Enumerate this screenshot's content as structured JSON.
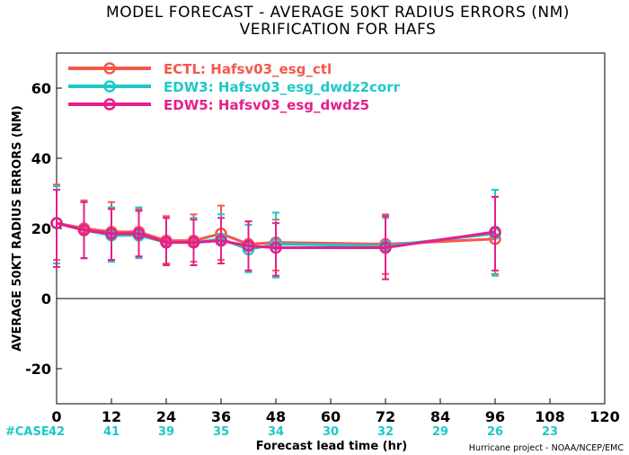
{
  "chart_data": {
    "type": "line",
    "title": "MODEL FORECAST - AVERAGE 50KT RADIUS ERRORS (NM)",
    "subtitle": "VERIFICATION FOR HAFS",
    "xlabel": "Forecast lead time (hr)",
    "ylabel": "AVERAGE 50KT RADIUS ERRORS (NM)",
    "xlim": [
      0,
      120
    ],
    "ylim": [
      -30,
      70
    ],
    "x_ticks": [
      0,
      12,
      24,
      36,
      48,
      60,
      72,
      84,
      96,
      108,
      120
    ],
    "x_tick_labels": [
      "0",
      "12",
      "24",
      "36",
      "48",
      "60",
      "72",
      "84",
      "96",
      "108",
      "120"
    ],
    "y_ticks": [
      -20,
      0,
      20,
      40,
      60
    ],
    "y_tick_labels": [
      "-20",
      "0",
      "20",
      "40",
      "60"
    ],
    "zero_line": true,
    "legend_position": "top-left",
    "credit": "Hurricane project - NOAA/NCEP/EMC",
    "case_label": "#CASE",
    "case_color": "#1ec8c8",
    "cases": [
      {
        "x": 0,
        "count": "42"
      },
      {
        "x": 12,
        "count": "41"
      },
      {
        "x": 24,
        "count": "39"
      },
      {
        "x": 36,
        "count": "35"
      },
      {
        "x": 48,
        "count": "34"
      },
      {
        "x": 60,
        "count": "30"
      },
      {
        "x": 72,
        "count": "32"
      },
      {
        "x": 84,
        "count": "29"
      },
      {
        "x": 96,
        "count": "26"
      },
      {
        "x": 108,
        "count": "23"
      }
    ],
    "series": [
      {
        "name": "ECTL: Hafsv03_esg_ctl",
        "color": "#f5574a",
        "x": [
          0,
          6,
          12,
          18,
          24,
          30,
          36,
          42,
          48,
          72,
          96
        ],
        "y": [
          21.5,
          20,
          19,
          19,
          16.5,
          16.5,
          18.5,
          15.5,
          16,
          15.5,
          17
        ],
        "err_low": [
          11,
          11.5,
          11,
          12,
          10,
          10.5,
          11,
          8,
          8,
          7,
          7
        ],
        "err_high": [
          32.5,
          28,
          27.5,
          25.5,
          23.5,
          24,
          26.5,
          22,
          22.5,
          24,
          29
        ]
      },
      {
        "name": "EDW3: Hafsv03_esg_dwdz2corr",
        "color": "#1ec8c8",
        "x": [
          0,
          6,
          12,
          18,
          24,
          30,
          36,
          42,
          48,
          72,
          96
        ],
        "y": [
          21.5,
          19.5,
          18,
          18,
          16,
          16,
          17,
          14,
          15.5,
          15,
          18.5
        ],
        "err_low": [
          10,
          11.5,
          10.5,
          11.5,
          9.5,
          9.5,
          10,
          7.5,
          6,
          5.5,
          6.5
        ],
        "err_high": [
          32,
          27.5,
          26,
          26,
          23,
          23,
          24,
          21,
          24.5,
          23,
          31
        ]
      },
      {
        "name": "EDW5: Hafsv03_esg_dwdz5",
        "color": "#e61e8c",
        "x": [
          0,
          6,
          12,
          18,
          24,
          30,
          36,
          42,
          48,
          72,
          96
        ],
        "y": [
          21.5,
          19.5,
          18.5,
          18.5,
          16,
          16,
          16.5,
          15,
          14.5,
          14.5,
          19
        ],
        "err_low": [
          9,
          11.5,
          11,
          12,
          9.5,
          9.5,
          10,
          8,
          6.5,
          5.5,
          8
        ],
        "err_high": [
          31,
          27.5,
          25.5,
          25,
          23,
          22.5,
          23,
          22,
          21.5,
          23.5,
          29
        ]
      }
    ]
  }
}
